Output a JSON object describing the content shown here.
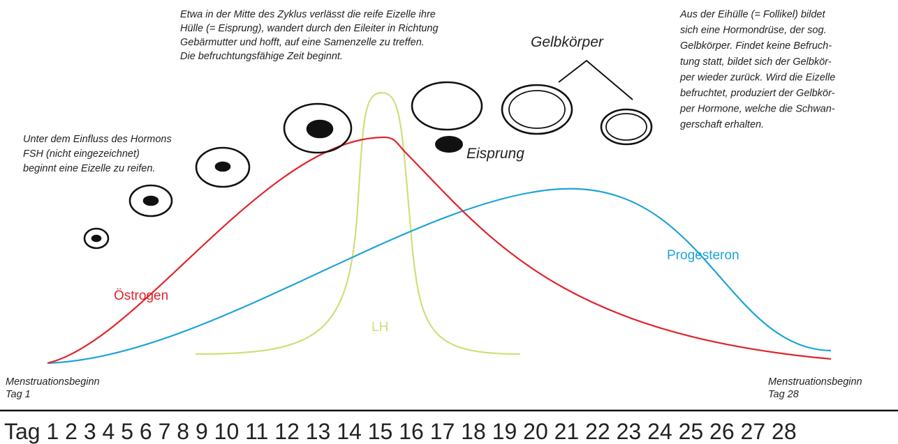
{
  "annotations": {
    "ovulation_text": [
      "Etwa in der Mitte des Zyklus verlässt die reife Eizelle ihre",
      "Hülle (= Eisprung), wandert durch den Eileiter in Richtung",
      "Gebärmutter und hofft, auf eine Samenzelle zu treffen.",
      "Die befruchtungsfähige Zeit beginnt."
    ],
    "corpus_text": [
      "Aus der Eihülle (= Follikel) bildet",
      "sich eine Hormondrüse, der sog.",
      "Gelbkörper. Findet keine Befruch-",
      "tung statt, bildet sich der Gelbkör-",
      "per wieder zurück. Wird die Eizelle",
      "befruchtet, produziert der Gelbkör-",
      "per Hormone, welche die Schwan-",
      "gerschaft erhalten."
    ],
    "fsh_text": [
      "Unter dem Einfluss des Hormons",
      "FSH (nicht eingezeichnet)",
      "beginnt eine Eizelle zu reifen."
    ]
  },
  "labels": {
    "estrogen": "Östrogen",
    "progesterone": "Progesteron",
    "lh": "LH",
    "ovulation": "Eisprung",
    "corpus_luteum": "Gelbkörper"
  },
  "start": {
    "line1": "Menstruationsbeginn",
    "line2": "Tag 1"
  },
  "end": {
    "line1": "Menstruationsbeginn",
    "line2": "Tag 28"
  },
  "days": "Tag 1 2 3 4 5 6 7 8 9 10 11 12 13 14 15 16 17 18 19 20 21 22 23 24 25 26 27 28"
}
